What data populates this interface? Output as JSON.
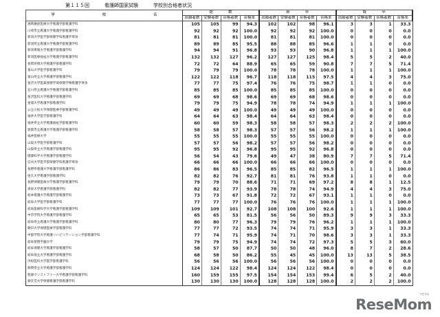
{
  "header": {
    "exam": "第１１５回",
    "title": "看護師国家試験",
    "subtitle": "学校別合格者状況"
  },
  "table": {
    "school_header": [
      "学",
      "校",
      "名"
    ],
    "groups": [
      "総　　　　数",
      "新　　　　卒",
      "既　　　　卒"
    ],
    "subcols": [
      "出願者数",
      "受験者数",
      "合格者数",
      "合格率"
    ],
    "rows": [
      {
        "name": "湘南鎌倉医療大学看護学部看護学科",
        "v": [
          "105",
          "105",
          "99",
          "94.3",
          "102",
          "102",
          "98",
          "96.1",
          "3",
          "3",
          "1",
          "33.3"
        ]
      },
      {
        "name": "川崎市立看護大学看護学部看護学科",
        "v": [
          "92",
          "92",
          "92",
          "100.0",
          "92",
          "92",
          "92",
          "100.0",
          "0",
          "0",
          "0",
          "0.0"
        ]
      },
      {
        "name": "新潟大学医学部保健学科看護学専攻",
        "v": [
          "81",
          "81",
          "81",
          "100.0",
          "81",
          "81",
          "81",
          "100.0",
          "0",
          "0",
          "0",
          "0.0"
        ]
      },
      {
        "name": "新潟県立看護大学看護学部看護学科",
        "v": [
          "89",
          "89",
          "85",
          "95.5",
          "88",
          "88",
          "85",
          "96.6",
          "1",
          "1",
          "0",
          "0.0"
        ]
      },
      {
        "name": "新潟青陵大学看護学部看護学科",
        "v": [
          "94",
          "94",
          "91",
          "96.8",
          "93",
          "93",
          "90",
          "96.8",
          "1",
          "1",
          "1",
          "100.0"
        ]
      },
      {
        "name": "新潟医療福祉大学看護学部看護学科",
        "v": [
          "132",
          "132",
          "127",
          "96.2",
          "127",
          "127",
          "125",
          "98.4",
          "5",
          "5",
          "2",
          "40.0"
        ]
      },
      {
        "name": "長岡崇徳大学看護学部看護学科",
        "v": [
          "72",
          "72",
          "64",
          "88.9",
          "65",
          "65",
          "59",
          "90.8",
          "7",
          "7",
          "5",
          "71.4"
        ]
      },
      {
        "name": "富山大学医学部看護学科",
        "v": [
          "79",
          "79",
          "79",
          "100.0",
          "78",
          "78",
          "78",
          "100.0",
          "1",
          "1",
          "1",
          "100.0"
        ]
      },
      {
        "name": "富山県立大学看護学部看護学科",
        "v": [
          "122",
          "122",
          "118",
          "96.7",
          "118",
          "118",
          "115",
          "97.5",
          "4",
          "4",
          "3",
          "75.0"
        ]
      },
      {
        "name": "金沢大学医薬保健学域保健学類看護学専攻",
        "v": [
          "77",
          "77",
          "75",
          "97.4",
          "76",
          "76",
          "75",
          "98.7",
          "1",
          "1",
          "0",
          "0.0"
        ]
      },
      {
        "name": "石川県立看護大学看護学部看護学科",
        "v": [
          "85",
          "85",
          "85",
          "100.0",
          "85",
          "85",
          "85",
          "100.0",
          "0",
          "0",
          "0",
          "0.0"
        ]
      },
      {
        "name": "金沢医科大学看護学部看護学科",
        "v": [
          "69",
          "69",
          "68",
          "98.6",
          "69",
          "69",
          "68",
          "98.6",
          "0",
          "0",
          "0",
          "0.0"
        ]
      },
      {
        "name": "金城大学看護学部看護学科",
        "v": [
          "79",
          "79",
          "75",
          "94.9",
          "78",
          "78",
          "74",
          "94.9",
          "1",
          "1",
          "1",
          "100.0"
        ]
      },
      {
        "name": "公立小松大学保健医療学部看護学科",
        "v": [
          "49",
          "49",
          "49",
          "100.0",
          "49",
          "49",
          "49",
          "100.0",
          "0",
          "0",
          "0",
          "0.0"
        ]
      },
      {
        "name": "福井大学医学部看護学科",
        "v": [
          "64",
          "64",
          "63",
          "98.4",
          "64",
          "64",
          "63",
          "98.4",
          "0",
          "0",
          "0",
          "0.0"
        ]
      },
      {
        "name": "福井県立大学看護福祉学部看護学科",
        "v": [
          "60",
          "60",
          "59",
          "98.3",
          "58",
          "58",
          "57",
          "98.3",
          "2",
          "2",
          "2",
          "100.0"
        ]
      },
      {
        "name": "敦賀市立看護大学看護学部看護学科",
        "v": [
          "58",
          "58",
          "57",
          "98.3",
          "57",
          "57",
          "56",
          "98.2",
          "1",
          "1",
          "1",
          "100.0"
        ]
      },
      {
        "name": "福井医療大学",
        "v": [
          "55",
          "55",
          "55",
          "100.0",
          "55",
          "55",
          "55",
          "100.0",
          "0",
          "0",
          "0",
          "0.0"
        ]
      },
      {
        "name": "山梨大学医学部看護学科",
        "v": [
          "57",
          "57",
          "56",
          "98.2",
          "57",
          "57",
          "56",
          "98.2",
          "0",
          "0",
          "0",
          "0.0"
        ]
      },
      {
        "name": "山梨県立大学看護学部看護学科",
        "v": [
          "95",
          "95",
          "92",
          "96.8",
          "95",
          "95",
          "92",
          "96.8",
          "0",
          "0",
          "0",
          "0.0"
        ]
      },
      {
        "name": "健康科学大学看護学部看護学科",
        "v": [
          "56",
          "54",
          "43",
          "79.6",
          "49",
          "47",
          "38",
          "80.9",
          "7",
          "7",
          "5",
          "71.4"
        ]
      },
      {
        "name": "信州大学医学部保健学科看護学専攻",
        "v": [
          "66",
          "66",
          "66",
          "100.0",
          "66",
          "66",
          "66",
          "100.0",
          "0",
          "0",
          "0",
          "0.0"
        ]
      },
      {
        "name": "長野県看護大学看護学部看護学科",
        "v": [
          "86",
          "86",
          "83",
          "96.5",
          "85",
          "85",
          "82",
          "96.5",
          "1",
          "1",
          "1",
          "100.0"
        ]
      },
      {
        "name": "佐久大学看護学部看護学科",
        "v": [
          "82",
          "82",
          "76",
          "92.7",
          "81",
          "81",
          "76",
          "93.8",
          "1",
          "1",
          "0",
          "0.0"
        ]
      },
      {
        "name": "長野保健医療大学看護学部看護学科",
        "v": [
          "79",
          "79",
          "70",
          "88.6",
          "71",
          "71",
          "69",
          "97.2",
          "8",
          "8",
          "1",
          "12.5"
        ]
      },
      {
        "name": "清泉大学看護学部看護学科",
        "v": [
          "82",
          "82",
          "77",
          "93.9",
          "78",
          "78",
          "74",
          "94.9",
          "4",
          "4",
          "3",
          "75.0"
        ]
      },
      {
        "name": "松本看護大学看護学部看護学科",
        "v": [
          "73",
          "73",
          "67",
          "91.8",
          "72",
          "72",
          "67",
          "93.1",
          "1",
          "1",
          "0",
          "0.0"
        ]
      },
      {
        "name": "岐阜大学医学部看護学科",
        "v": [
          "77",
          "77",
          "77",
          "100.0",
          "76",
          "76",
          "76",
          "100.0",
          "1",
          "1",
          "1",
          "100.0"
        ]
      },
      {
        "name": "岐阜医療科学大学看護学部看護学科",
        "v": [
          "109",
          "109",
          "101",
          "92.7",
          "108",
          "108",
          "100",
          "92.6",
          "1",
          "1",
          "1",
          "100.0"
        ]
      },
      {
        "name": "中京学院大学看護学部看護学科",
        "v": [
          "65",
          "65",
          "53",
          "81.5",
          "56",
          "56",
          "50",
          "89.3",
          "9",
          "9",
          "3",
          "33.3"
        ]
      },
      {
        "name": "岐阜県立看護大学看護学部看護学科",
        "v": [
          "80",
          "80",
          "77",
          "96.3",
          "79",
          "79",
          "76",
          "96.2",
          "1",
          "1",
          "1",
          "100.0"
        ]
      },
      {
        "name": "朝日大学保健医療学部看護学科",
        "v": [
          "77",
          "77",
          "72",
          "93.5",
          "74",
          "74",
          "71",
          "95.9",
          "3",
          "3",
          "1",
          "33.3"
        ]
      },
      {
        "name": "中部学院大学看護リハビリテーション学部看護学科",
        "v": [
          "77",
          "74",
          "71",
          "95.9",
          "74",
          "71",
          "70",
          "98.6",
          "3",
          "3",
          "1",
          "33.3"
        ]
      },
      {
        "name": "岐阜聖徳学園大学",
        "v": [
          "79",
          "79",
          "75",
          "94.9",
          "74",
          "74",
          "72",
          "97.3",
          "5",
          "5",
          "3",
          "60.0"
        ]
      },
      {
        "name": "岐阜保健大学看護学部看護学科",
        "v": [
          "58",
          "57",
          "50",
          "87.7",
          "50",
          "50",
          "48",
          "96.0",
          "8",
          "7",
          "2",
          "28.6"
        ]
      },
      {
        "name": "岐阜協立大学看護学部看護学科",
        "v": [
          "68",
          "58",
          "50",
          "86.2",
          "55",
          "45",
          "45",
          "100.0",
          "13",
          "13",
          "5",
          "38.5"
        ]
      },
      {
        "name": "浜松医科大学医学部看護学科",
        "v": [
          "56",
          "56",
          "56",
          "100.0",
          "56",
          "56",
          "56",
          "100.0",
          "0",
          "0",
          "0",
          "0.0"
        ]
      },
      {
        "name": "静岡県立大学看護学部看護学科",
        "v": [
          "124",
          "124",
          "122",
          "98.4",
          "124",
          "124",
          "122",
          "98.4",
          "0",
          "0",
          "0",
          "0.0"
        ]
      },
      {
        "name": "聖隷クリストファー大学看護学部看護学科",
        "v": [
          "160",
          "159",
          "155",
          "97.5",
          "154",
          "154",
          "153",
          "99.4",
          "6",
          "5",
          "2",
          "40.0"
        ]
      },
      {
        "name": "順天堂大学保健看護学部看護学科",
        "v": [
          "130",
          "130",
          "130",
          "100.0",
          "128",
          "128",
          "128",
          "100.0",
          "2",
          "2",
          "2",
          "100.0"
        ]
      }
    ]
  },
  "logo": {
    "text": "ReseMom",
    "ruby": "リセマム"
  }
}
